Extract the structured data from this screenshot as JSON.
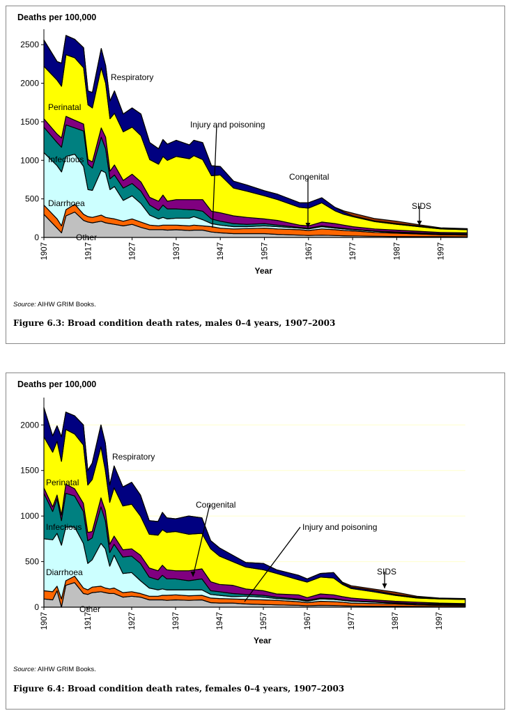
{
  "chart_data": [
    {
      "type": "area",
      "stacked": true,
      "title": "Figure 6.3: Broad condition death rates, males 0–4 years, 1907–2003",
      "ylabel": "Deaths per 100,000",
      "xlabel": "Year",
      "source_label": "Source:",
      "source_text": " AIHW GRIM Books.",
      "ylim": [
        0,
        2700
      ],
      "xlim": [
        1907,
        2003
      ],
      "yticks": [
        0,
        500,
        1000,
        1500,
        2000,
        2500
      ],
      "xticks": [
        1907,
        1917,
        1927,
        1937,
        1947,
        1957,
        1967,
        1977,
        1987,
        1997
      ],
      "grid": false,
      "x": [
        1907,
        1910,
        1911,
        1912,
        1914,
        1916,
        1917,
        1918,
        1920,
        1921,
        1922,
        1923,
        1925,
        1927,
        1929,
        1931,
        1933,
        1934,
        1935,
        1937,
        1940,
        1941,
        1943,
        1945,
        1947,
        1950,
        1953,
        1957,
        1960,
        1965,
        1967,
        1970,
        1973,
        1975,
        1977,
        1982,
        1987,
        1992,
        1997,
        2003
      ],
      "series": [
        {
          "name": "Other",
          "color": "#c0c0c0",
          "values": [
            300,
            120,
            60,
            280,
            330,
            220,
            200,
            190,
            210,
            190,
            180,
            170,
            150,
            170,
            130,
            100,
            100,
            100,
            95,
            100,
            90,
            95,
            95,
            70,
            60,
            50,
            50,
            50,
            40,
            30,
            25,
            30,
            25,
            22,
            20,
            15,
            12,
            10,
            10,
            8
          ]
        },
        {
          "name": "Injury and poisoning",
          "color": "#ff6600",
          "values": [
            120,
            120,
            90,
            80,
            100,
            80,
            70,
            70,
            80,
            70,
            70,
            70,
            60,
            70,
            70,
            60,
            50,
            60,
            65,
            60,
            60,
            65,
            55,
            70,
            60,
            60,
            65,
            70,
            70,
            70,
            65,
            80,
            75,
            68,
            65,
            50,
            43,
            35,
            25,
            22
          ]
        },
        {
          "name": "Diarrhoea",
          "color": "#ccffff",
          "values": [
            680,
            690,
            700,
            690,
            650,
            620,
            350,
            350,
            580,
            580,
            370,
            420,
            270,
            300,
            240,
            130,
            90,
            100,
            80,
            90,
            100,
            110,
            80,
            40,
            40,
            30,
            25,
            30,
            30,
            20,
            20,
            30,
            20,
            20,
            15,
            15,
            10,
            10,
            10,
            10
          ]
        },
        {
          "name": "Infectious",
          "color": "#008080",
          "values": [
            330,
            300,
            320,
            410,
            340,
            460,
            330,
            290,
            430,
            310,
            140,
            150,
            160,
            160,
            160,
            130,
            110,
            160,
            130,
            120,
            110,
            90,
            110,
            60,
            50,
            40,
            30,
            30,
            20,
            10,
            10,
            10,
            10,
            8,
            5,
            5,
            5,
            5,
            5,
            5
          ]
        },
        {
          "name": "Congenital",
          "color": "#800080",
          "values": [
            110,
            110,
            120,
            110,
            100,
            90,
            60,
            80,
            120,
            150,
            100,
            130,
            100,
            120,
            120,
            100,
            120,
            130,
            100,
            120,
            130,
            130,
            150,
            100,
            110,
            100,
            90,
            60,
            60,
            30,
            30,
            50,
            50,
            42,
            35,
            25,
            25,
            20,
            15,
            15
          ]
        },
        {
          "name": "Perinatal",
          "color": "#ffff00",
          "values": [
            680,
            700,
            670,
            800,
            810,
            730,
            710,
            700,
            780,
            700,
            680,
            670,
            630,
            610,
            600,
            490,
            480,
            500,
            530,
            560,
            530,
            570,
            520,
            460,
            490,
            360,
            340,
            300,
            270,
            230,
            230,
            250,
            165,
            140,
            130,
            95,
            75,
            60,
            45,
            40
          ]
        },
        {
          "name": "Respiratory",
          "color": "#000080",
          "values": [
            340,
            240,
            300,
            250,
            240,
            260,
            180,
            200,
            250,
            230,
            230,
            290,
            230,
            250,
            280,
            220,
            200,
            220,
            210,
            210,
            180,
            200,
            220,
            130,
            110,
            90,
            80,
            65,
            70,
            60,
            70,
            65,
            45,
            30,
            10,
            10,
            10,
            10,
            5,
            10
          ]
        },
        {
          "name": "SIDS",
          "color": "#993300",
          "values": [
            0,
            0,
            0,
            0,
            0,
            0,
            0,
            0,
            0,
            0,
            0,
            0,
            0,
            0,
            0,
            0,
            0,
            0,
            0,
            0,
            0,
            0,
            0,
            0,
            0,
            0,
            0,
            0,
            0,
            0,
            0,
            0,
            0,
            15,
            35,
            30,
            30,
            15,
            10,
            5
          ]
        }
      ],
      "annotations": [
        {
          "text": "Respiratory",
          "series": "Respiratory"
        },
        {
          "text": "Perinatal",
          "series": "Perinatal"
        },
        {
          "text": "Infectious",
          "series": "Infectious"
        },
        {
          "text": "Diarrhoea",
          "series": "Diarrhoea"
        },
        {
          "text": "Other",
          "series": "Other"
        },
        {
          "text": "Injury and poisoning",
          "series": "Injury and poisoning"
        },
        {
          "text": "Congenital",
          "series": "Congenital"
        },
        {
          "text": "SIDS",
          "series": "SIDS"
        }
      ]
    },
    {
      "type": "area",
      "stacked": true,
      "title": "Figure 6.4: Broad condition death rates, females 0–4 years, 1907–2003",
      "ylabel": "Deaths per 100,000",
      "xlabel": "Year",
      "source_label": "Source:",
      "source_text": " AIHW GRIM Books.",
      "ylim": [
        0,
        2300
      ],
      "xlim": [
        1907,
        2003
      ],
      "yticks": [
        0,
        500,
        1000,
        1500,
        2000
      ],
      "xticks": [
        1907,
        1917,
        1927,
        1937,
        1947,
        1957,
        1967,
        1977,
        1987,
        1997
      ],
      "grid": true,
      "x": [
        1907,
        1909,
        1910,
        1911,
        1912,
        1914,
        1916,
        1917,
        1918,
        1920,
        1921,
        1922,
        1923,
        1925,
        1927,
        1929,
        1931,
        1933,
        1934,
        1935,
        1937,
        1940,
        1943,
        1945,
        1947,
        1950,
        1953,
        1957,
        1960,
        1965,
        1967,
        1970,
        1973,
        1975,
        1977,
        1982,
        1987,
        1992,
        1997,
        2003
      ],
      "series": [
        {
          "name": "Other",
          "color": "#c0c0c0",
          "values": [
            90,
            80,
            180,
            0,
            240,
            270,
            150,
            140,
            160,
            170,
            160,
            150,
            150,
            110,
            120,
            110,
            80,
            80,
            80,
            75,
            80,
            75,
            80,
            50,
            45,
            45,
            35,
            30,
            25,
            20,
            15,
            20,
            18,
            15,
            12,
            10,
            10,
            8,
            7,
            6
          ]
        },
        {
          "name": "Injury and poisoning",
          "color": "#ff6600",
          "values": [
            90,
            90,
            50,
            90,
            50,
            70,
            60,
            50,
            60,
            60,
            50,
            50,
            60,
            50,
            50,
            40,
            40,
            40,
            50,
            55,
            55,
            50,
            50,
            50,
            50,
            45,
            50,
            50,
            50,
            40,
            35,
            45,
            42,
            40,
            33,
            30,
            25,
            17,
            13,
            12
          ]
        },
        {
          "name": "Diarrhoea",
          "color": "#ccffff",
          "values": [
            570,
            570,
            580,
            590,
            590,
            540,
            490,
            290,
            300,
            470,
            430,
            250,
            360,
            210,
            210,
            140,
            90,
            70,
            70,
            60,
            55,
            65,
            60,
            40,
            35,
            25,
            35,
            30,
            20,
            20,
            15,
            25,
            25,
            20,
            20,
            15,
            10,
            10,
            10,
            7
          ]
        },
        {
          "name": "Infectious",
          "color": "#008080",
          "values": [
            500,
            310,
            380,
            270,
            370,
            340,
            350,
            250,
            240,
            400,
            310,
            150,
            120,
            180,
            180,
            190,
            120,
            110,
            150,
            120,
            120,
            100,
            120,
            40,
            40,
            35,
            20,
            20,
            15,
            10,
            10,
            10,
            10,
            5,
            5,
            5,
            5,
            5,
            5,
            5
          ]
        },
        {
          "name": "Congenital",
          "color": "#800080",
          "values": [
            60,
            50,
            40,
            60,
            100,
            80,
            90,
            90,
            70,
            100,
            110,
            90,
            90,
            80,
            80,
            90,
            100,
            100,
            110,
            100,
            90,
            110,
            110,
            100,
            80,
            90,
            60,
            50,
            35,
            45,
            30,
            45,
            40,
            35,
            30,
            20,
            15,
            15,
            10,
            10
          ]
        },
        {
          "name": "Perinatal",
          "color": "#ffff00",
          "values": [
            560,
            600,
            590,
            590,
            600,
            600,
            640,
            520,
            570,
            560,
            440,
            460,
            530,
            480,
            490,
            430,
            370,
            390,
            390,
            410,
            430,
            400,
            390,
            360,
            310,
            260,
            240,
            230,
            225,
            165,
            170,
            185,
            185,
            135,
            105,
            90,
            65,
            45,
            45,
            45
          ]
        },
        {
          "name": "Respiratory",
          "color": "#000080",
          "values": [
            320,
            180,
            170,
            270,
            190,
            200,
            220,
            160,
            180,
            240,
            300,
            190,
            240,
            210,
            240,
            230,
            150,
            150,
            190,
            160,
            140,
            200,
            170,
            90,
            90,
            70,
            50,
            70,
            40,
            50,
            35,
            40,
            60,
            15,
            15,
            15,
            10,
            10,
            5,
            5
          ]
        },
        {
          "name": "SIDS",
          "color": "#993300",
          "values": [
            0,
            0,
            0,
            0,
            0,
            0,
            0,
            0,
            0,
            0,
            0,
            0,
            0,
            0,
            0,
            0,
            0,
            0,
            0,
            0,
            0,
            0,
            0,
            0,
            0,
            0,
            0,
            0,
            0,
            0,
            0,
            0,
            0,
            10,
            15,
            15,
            25,
            10,
            5,
            5
          ]
        }
      ],
      "annotations": [
        {
          "text": "Respiratory",
          "series": "Respiratory"
        },
        {
          "text": "Perinatal",
          "series": "Perinatal"
        },
        {
          "text": "Infectious",
          "series": "Infectious"
        },
        {
          "text": "Diarrhoea",
          "series": "Diarrhoea"
        },
        {
          "text": "Other",
          "series": "Other"
        },
        {
          "text": "Congenital",
          "series": "Congenital"
        },
        {
          "text": "Injury and poisoning",
          "series": "Injury and poisoning"
        },
        {
          "text": "SIDS",
          "series": "SIDS"
        }
      ]
    }
  ]
}
